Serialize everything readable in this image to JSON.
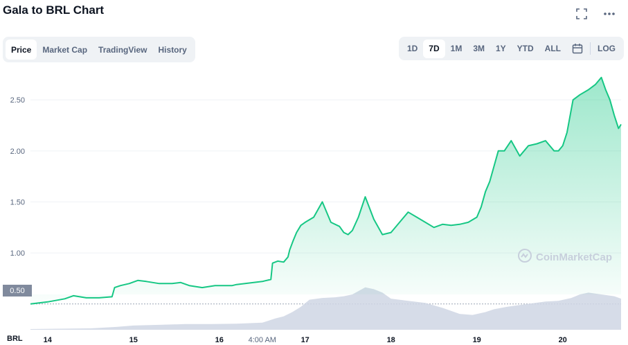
{
  "header": {
    "title": "Gala to BRL Chart",
    "icons": [
      "fullscreen-icon",
      "more-icon"
    ]
  },
  "tabs": [
    {
      "label": "Price",
      "active": true
    },
    {
      "label": "Market Cap",
      "active": false
    },
    {
      "label": "TradingView",
      "active": false
    },
    {
      "label": "History",
      "active": false
    }
  ],
  "ranges": [
    {
      "label": "1D",
      "active": false
    },
    {
      "label": "7D",
      "active": true
    },
    {
      "label": "1M",
      "active": false
    },
    {
      "label": "3M",
      "active": false
    },
    {
      "label": "1Y",
      "active": false
    },
    {
      "label": "YTD",
      "active": false
    },
    {
      "label": "ALL",
      "active": false
    }
  ],
  "log_label": "LOG",
  "current_price_badge": "0.50",
  "currency_label": "BRL",
  "watermark": "CoinMarketCap",
  "colors": {
    "line": "#16c784",
    "area_top": "#16c784",
    "volume": "#cfd6e4",
    "badge": "#808a9d"
  },
  "chart_data": {
    "type": "area",
    "title": "",
    "ylabel": "",
    "xlabel": "",
    "y_ticks": [
      "0.50",
      "1.00",
      "1.50",
      "2.00",
      "2.50"
    ],
    "x_ticks": [
      "14",
      "15",
      "16",
      "4:00 AM",
      "17",
      "18",
      "19",
      "20"
    ],
    "x_range_days": [
      13.8,
      20.68
    ],
    "ylim": [
      0.24,
      2.8
    ],
    "grid": true,
    "series": [
      {
        "x": [
          13.8,
          14.0,
          14.2,
          14.3,
          14.45,
          14.6,
          14.75,
          14.78,
          14.85,
          14.95,
          15.05,
          15.15,
          15.3,
          15.45,
          15.55,
          15.65,
          15.8,
          15.95,
          16.05,
          16.15,
          16.2,
          16.3,
          16.4,
          16.5,
          16.6,
          16.62,
          16.68,
          16.75,
          16.8,
          16.82,
          16.86,
          16.9,
          16.95,
          17.0,
          17.1,
          17.2,
          17.3,
          17.4,
          17.45,
          17.5,
          17.55,
          17.62,
          17.7,
          17.8,
          17.9,
          18.0,
          18.1,
          18.2,
          18.3,
          18.4,
          18.5,
          18.6,
          18.7,
          18.8,
          18.9,
          19.0,
          19.05,
          19.1,
          19.15,
          19.2,
          19.25,
          19.32,
          19.4,
          19.5,
          19.6,
          19.7,
          19.8,
          19.9,
          19.95,
          20.0,
          20.05,
          20.12,
          20.2,
          20.3,
          20.38,
          20.45,
          20.5,
          20.55,
          20.6,
          20.65,
          20.68
        ],
        "y": [
          0.5,
          0.52,
          0.55,
          0.58,
          0.56,
          0.56,
          0.57,
          0.66,
          0.68,
          0.7,
          0.73,
          0.72,
          0.7,
          0.7,
          0.71,
          0.68,
          0.66,
          0.68,
          0.68,
          0.68,
          0.69,
          0.7,
          0.71,
          0.72,
          0.74,
          0.9,
          0.92,
          0.91,
          0.96,
          1.03,
          1.12,
          1.2,
          1.27,
          1.3,
          1.35,
          1.5,
          1.3,
          1.26,
          1.2,
          1.18,
          1.22,
          1.35,
          1.55,
          1.33,
          1.18,
          1.2,
          1.3,
          1.4,
          1.35,
          1.3,
          1.25,
          1.28,
          1.27,
          1.28,
          1.3,
          1.35,
          1.45,
          1.6,
          1.7,
          1.85,
          2.0,
          2.0,
          2.1,
          1.95,
          2.05,
          2.07,
          2.1,
          2.0,
          2.0,
          2.05,
          2.18,
          2.5,
          2.55,
          2.6,
          2.65,
          2.72,
          2.6,
          2.5,
          2.35,
          2.22,
          2.26
        ]
      }
    ],
    "volume": {
      "x": [
        13.8,
        14.5,
        14.8,
        15.0,
        15.3,
        15.6,
        15.9,
        16.2,
        16.5,
        16.65,
        16.75,
        16.85,
        16.95,
        17.05,
        17.2,
        17.35,
        17.45,
        17.55,
        17.7,
        17.8,
        17.9,
        18.0,
        18.2,
        18.4,
        18.6,
        18.8,
        18.95,
        19.1,
        19.2,
        19.35,
        19.5,
        19.65,
        19.8,
        19.95,
        20.1,
        20.2,
        20.3,
        20.45,
        20.6,
        20.68
      ],
      "y": [
        0.02,
        0.04,
        0.08,
        0.12,
        0.14,
        0.16,
        0.16,
        0.17,
        0.2,
        0.32,
        0.38,
        0.5,
        0.65,
        0.85,
        0.9,
        0.92,
        0.95,
        1.0,
        1.2,
        1.15,
        1.05,
        0.88,
        0.82,
        0.76,
        0.62,
        0.45,
        0.42,
        0.5,
        0.58,
        0.65,
        0.7,
        0.75,
        0.8,
        0.82,
        0.9,
        1.0,
        1.05,
        1.0,
        0.95,
        0.88
      ]
    }
  }
}
